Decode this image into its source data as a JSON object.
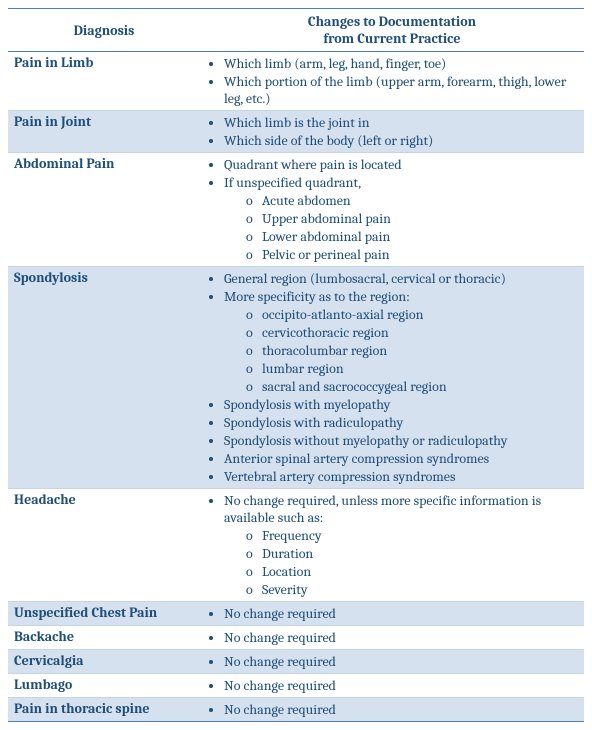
{
  "colors": {
    "text": "#1f4e79",
    "border": "#4a7fbf",
    "shaded_row_bg": "#d6e1ef",
    "plain_row_bg": "#ffffff",
    "light_border": "#c5d4e8"
  },
  "typography": {
    "font_family": "Cambria, Georgia, 'Times New Roman', serif",
    "base_fontsize_pt": 11,
    "header_fontsize_pt": 11,
    "header_weight": "bold",
    "diag_weight": "bold"
  },
  "columns": [
    "Diagnosis",
    "Changes to Documentation\nfrom Current Practice"
  ],
  "header": {
    "col1": "Diagnosis",
    "col2_line1": "Changes to Documentation",
    "col2_line2": "from Current Practice"
  },
  "rows": [
    {
      "shaded": false,
      "diagnosis": "Pain in Limb",
      "changes": [
        {
          "text": "Which limb (arm, leg, hand, finger, toe)"
        },
        {
          "text": "Which portion of the limb (upper arm, forearm, thigh, lower leg, etc.)"
        }
      ]
    },
    {
      "shaded": true,
      "diagnosis": "Pain in Joint",
      "changes": [
        {
          "text": "Which limb is the joint in"
        },
        {
          "text": "Which side of the body (left or right)"
        }
      ]
    },
    {
      "shaded": false,
      "diagnosis": "Abdominal Pain",
      "changes": [
        {
          "text": "Quadrant where pain is located"
        },
        {
          "text": "If unspecified quadrant,",
          "sub": [
            "Acute abdomen",
            "Upper abdominal pain",
            "Lower abdominal pain",
            "Pelvic or perineal pain"
          ]
        }
      ]
    },
    {
      "shaded": true,
      "diagnosis": "Spondylosis",
      "changes": [
        {
          "text": "General region (lumbosacral, cervical or thoracic)"
        },
        {
          "text": "More specificity as to the region:",
          "sub": [
            "occipito-atlanto-axial region",
            "cervicothoracic region",
            "thoracolumbar region",
            "lumbar region",
            "sacral and sacrococcygeal region"
          ]
        },
        {
          "text": "Spondylosis with myelopathy"
        },
        {
          "text": "Spondylosis with radiculopathy"
        },
        {
          "text": "Spondylosis without myelopathy or radiculopathy"
        },
        {
          "text": "Anterior spinal artery compression syndromes"
        },
        {
          "text": "Vertebral artery compression syndromes"
        }
      ]
    },
    {
      "shaded": false,
      "diagnosis": "Headache",
      "changes": [
        {
          "text": "No change required, unless more specific information is available such as:",
          "sub": [
            "Frequency",
            "Duration",
            "Location",
            "Severity"
          ]
        }
      ]
    },
    {
      "shaded": true,
      "diagnosis": "Unspecified Chest Pain",
      "changes": [
        {
          "text": "No change required"
        }
      ]
    },
    {
      "shaded": false,
      "diagnosis": "Backache",
      "changes": [
        {
          "text": "No change required"
        }
      ]
    },
    {
      "shaded": true,
      "diagnosis": "Cervicalgia",
      "changes": [
        {
          "text": "No change required"
        }
      ]
    },
    {
      "shaded": false,
      "diagnosis": "Lumbago",
      "changes": [
        {
          "text": "No change required"
        }
      ]
    },
    {
      "shaded": true,
      "diagnosis": "Pain in thoracic spine",
      "changes": [
        {
          "text": "No change required"
        }
      ]
    }
  ]
}
